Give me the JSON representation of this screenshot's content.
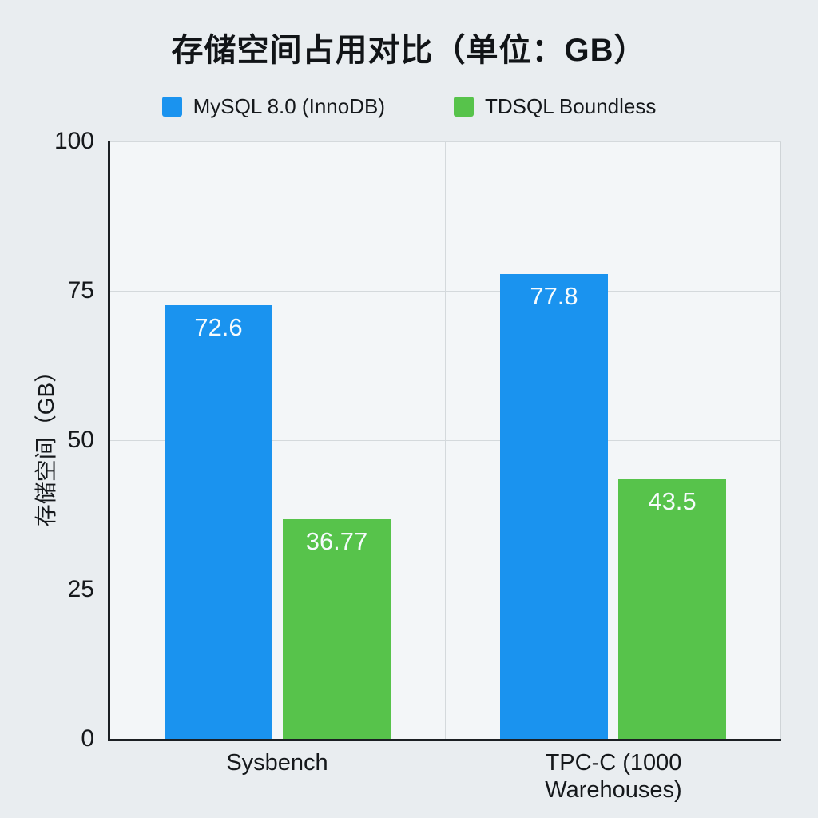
{
  "chart_data": {
    "type": "bar",
    "title": "存储空间占用对比（单位：GB）",
    "categories": [
      "Sysbench",
      "TPC-C (1000 Warehouses)"
    ],
    "series": [
      {
        "name": "MySQL 8.0 (InnoDB)",
        "color": "#1a93ef",
        "values": [
          72.6,
          77.8
        ]
      },
      {
        "name": "TDSQL Boundless",
        "color": "#57c34b",
        "values": [
          36.77,
          43.5
        ]
      }
    ],
    "value_labels": [
      [
        "72.6",
        "77.8"
      ],
      [
        "36.77",
        "43.5"
      ]
    ],
    "ylabel": "存储空间（GB）",
    "xlabel": "",
    "yticks": [
      0,
      25,
      50,
      75,
      100
    ],
    "ylim": [
      0,
      100
    ],
    "grid": true,
    "legend_position": "top",
    "colors": {
      "page_background": "#e9edf0",
      "plot_background": "#f3f6f8",
      "gridline": "#d4d9dc",
      "axis_line": "#1b1f23",
      "bar_value_text": "#f6fbfd"
    }
  }
}
